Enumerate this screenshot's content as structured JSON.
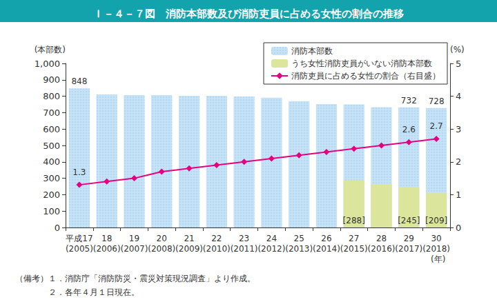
{
  "chart_data": {
    "type": "bar",
    "title": "Ｉ－４－７図　消防本部数及び消防吏員に占める女性の割合の推移",
    "x_label": "(年)",
    "y_label": "(本部数)",
    "y2_label": "(%)",
    "categories": [
      "平成17\n(2005)",
      "18\n(2006)",
      "19\n(2007)",
      "20\n(2008)",
      "21\n(2009)",
      "22\n(2010)",
      "23\n(2011)",
      "24\n(2012)",
      "25\n(2013)",
      "26\n(2014)",
      "27\n(2015)",
      "28\n(2016)",
      "29\n(2017)",
      "30\n(2018)"
    ],
    "series": [
      {
        "name": "消防本部数",
        "type": "bar",
        "color": "#c6e2f7",
        "values": [
          848,
          811,
          807,
          807,
          803,
          802,
          798,
          791,
          770,
          752,
          750,
          733,
          732,
          728
        ],
        "value_labels": [
          "848",
          null,
          null,
          null,
          null,
          null,
          null,
          null,
          null,
          null,
          null,
          null,
          "732",
          "728"
        ]
      },
      {
        "name": "うち女性消防吏員がいない消防本部数",
        "type": "bar",
        "color": "#dbe69c",
        "values": [
          null,
          null,
          null,
          null,
          null,
          null,
          null,
          null,
          null,
          null,
          288,
          264,
          245,
          209
        ],
        "value_labels": [
          null,
          null,
          null,
          null,
          null,
          null,
          null,
          null,
          null,
          null,
          "[288]",
          null,
          "[245]",
          "[209]"
        ]
      },
      {
        "name": "消防吏員に占める女性の割合（右目盛）",
        "type": "line",
        "axis": "y2",
        "color": "#e4007f",
        "marker": "diamond",
        "values": [
          1.3,
          1.4,
          1.5,
          1.7,
          1.8,
          1.9,
          2.0,
          2.1,
          2.2,
          2.3,
          2.4,
          2.5,
          2.6,
          2.7
        ],
        "value_labels": [
          "1.3",
          null,
          null,
          null,
          null,
          null,
          null,
          null,
          null,
          null,
          null,
          null,
          "2.6",
          "2.7"
        ]
      }
    ],
    "ylim": [
      0,
      1000
    ],
    "yticks": [
      0,
      100,
      200,
      300,
      400,
      500,
      600,
      700,
      800,
      900,
      {
        "value": 1000,
        "label": "1,000"
      }
    ],
    "y2lim": [
      0,
      5
    ],
    "y2ticks": [
      0,
      1,
      2,
      3,
      4,
      5
    ],
    "grid": false,
    "legend": "top-right",
    "data_labels": true,
    "notes": [
      "（備考）１．消防庁「消防防災・震災対策現況調査」より作成。",
      "　　　　２．各年４月１日現在。"
    ]
  }
}
